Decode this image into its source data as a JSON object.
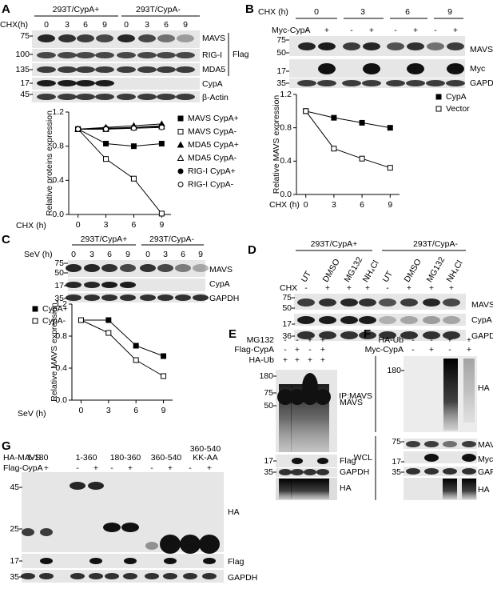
{
  "panels": {
    "A": {
      "letter": "A",
      "groups": [
        "293T/CypA+",
        "293T/CypA-"
      ],
      "row_label": "CHX(h)",
      "times": [
        "0",
        "3",
        "6",
        "9",
        "0",
        "3",
        "6",
        "9"
      ],
      "blots": [
        "MAVS",
        "RIG-I",
        "MDA5",
        "CypA",
        "β-Actin"
      ],
      "bracket": "Flag",
      "markers": [
        "75",
        "100",
        "135",
        "17",
        "45"
      ]
    },
    "B": {
      "letter": "B",
      "row_label": "CHX (h)",
      "times": [
        "0",
        "3",
        "6",
        "9"
      ],
      "treat_label": "Myc-CypA",
      "treat": [
        "-",
        "+",
        "-",
        "+",
        "-",
        "+",
        "-",
        "+"
      ],
      "blots": [
        "MAVS",
        "Myc",
        "GAPDH"
      ],
      "markers": [
        "75",
        "50",
        "17",
        "35"
      ]
    },
    "C": {
      "letter": "C",
      "groups": [
        "293T/CypA+",
        "293T/CypA-"
      ],
      "row_label": "SeV (h)",
      "times": [
        "0",
        "3",
        "6",
        "9",
        "0",
        "3",
        "6",
        "9"
      ],
      "blots": [
        "MAVS",
        "CypA",
        "GAPDH"
      ],
      "markers": [
        "75",
        "50",
        "17",
        "35"
      ]
    },
    "D": {
      "letter": "D",
      "groups": [
        "293T/CypA+",
        "293T/CypA-"
      ],
      "lanes": [
        "UT",
        "DMSO",
        "MG132",
        "NH₄Cl",
        "UT",
        "DMSO",
        "MG132",
        "NH₄Cl"
      ],
      "row_label": "CHX",
      "treat": [
        "-",
        "+",
        "+",
        "+",
        "-",
        "+",
        "+",
        "+"
      ],
      "blots": [
        "MAVS",
        "CypA",
        "GAPDH"
      ],
      "markers": [
        "75",
        "50",
        "17",
        "36"
      ]
    },
    "E": {
      "letter": "E",
      "rows": [
        {
          "label": "MG132",
          "signs": [
            "-",
            "-",
            "+",
            "+"
          ]
        },
        {
          "label": "Flag-CypA",
          "signs": [
            "-",
            "+",
            "-",
            "+"
          ]
        },
        {
          "label": "HA-Ub",
          "signs": [
            "+",
            "+",
            "+",
            "+"
          ]
        }
      ],
      "blots": [
        "MAVS",
        "Flag",
        "GAPDH",
        "HA"
      ],
      "markers": [
        "180",
        "75",
        "50",
        "17",
        "35"
      ]
    },
    "F": {
      "letter": "F",
      "rows": [
        {
          "label": "HA-Ub",
          "signs": [
            "-",
            "-",
            "+",
            "+"
          ]
        },
        {
          "label": "Myc-CypA",
          "signs": [
            "-",
            "+",
            "-",
            "+"
          ]
        }
      ],
      "sections": [
        "IP:MAVS",
        "WCL"
      ],
      "blots": [
        "HA",
        "MAVS",
        "Myc",
        "GAPDH",
        "HA"
      ],
      "markers": [
        "180",
        "75",
        "17",
        "35"
      ]
    },
    "G": {
      "letter": "G",
      "row_labels": [
        "HA-MAVS",
        "Flag-CypA"
      ],
      "constructs": [
        [
          "1-180"
        ],
        [
          "1-360"
        ],
        [
          "180-360"
        ],
        [
          "360-540"
        ],
        [
          "360-540",
          "KK-AA"
        ]
      ],
      "signs": [
        "-",
        "+",
        "-",
        "+",
        "-",
        "+",
        "-",
        "+",
        "-",
        "+"
      ],
      "blots": [
        "HA",
        "Flag",
        "GAPDH"
      ],
      "markers": [
        "45",
        "25",
        "17",
        "35"
      ]
    }
  },
  "chart_data": [
    {
      "type": "line",
      "ylabel": "Relative proteins expression",
      "xlabel": "CHX (h)",
      "x": [
        0,
        3,
        6,
        9
      ],
      "xlim": [
        -1,
        10
      ],
      "xticks": [
        0,
        3,
        6,
        9
      ],
      "ylim": [
        0,
        1.2
      ],
      "yticks": [
        {
          "value": 0,
          "label": "0.0"
        },
        0.4,
        0.8,
        1.2
      ],
      "legend": "right",
      "series": [
        {
          "name": "MAVS CypA+",
          "color": "#000000",
          "marker": "square",
          "filled": true,
          "values": [
            1,
            0.83,
            0.8,
            0.83
          ]
        },
        {
          "name": "MAVS CypA-",
          "color": "#000000",
          "marker": "square",
          "filled": false,
          "values": [
            1,
            0.65,
            0.42,
            0.01
          ]
        },
        {
          "name": "MDA5 CypA+",
          "color": "#000000",
          "marker": "triangle",
          "filled": true,
          "values": [
            1,
            1.02,
            1.04,
            1.06
          ]
        },
        {
          "name": "MDA5 CypA-",
          "color": "#000000",
          "marker": "triangle",
          "filled": false,
          "values": [
            1,
            1.0,
            1.02,
            1.03
          ]
        },
        {
          "name": "RIG-I CypA+",
          "color": "#000000",
          "marker": "circle",
          "filled": true,
          "values": [
            1,
            1.01,
            1.02,
            1.04
          ]
        },
        {
          "name": "RIG-I CypA-",
          "color": "#000000",
          "marker": "circle",
          "filled": false,
          "values": [
            1,
            1.0,
            1.01,
            1.02
          ]
        }
      ]
    },
    {
      "type": "line",
      "ylabel": "Relative MAVS expression",
      "xlabel": "CHX (h)",
      "x": [
        0,
        3,
        6,
        9
      ],
      "xlim": [
        -1,
        10
      ],
      "xticks": [
        0,
        3,
        6,
        9
      ],
      "ylim": [
        0,
        1.2
      ],
      "yticks": [
        {
          "value": 0,
          "label": "0.0"
        },
        0.4,
        0.8,
        1.2
      ],
      "legend": "right",
      "series": [
        {
          "name": "CypA",
          "color": "#000000",
          "marker": "square",
          "filled": true,
          "values": [
            1,
            0.92,
            0.86,
            0.8
          ]
        },
        {
          "name": "Vector",
          "color": "#000000",
          "marker": "square",
          "filled": false,
          "values": [
            1,
            0.55,
            0.43,
            0.32
          ]
        }
      ]
    },
    {
      "type": "line",
      "ylabel": "Relative MAVS expression",
      "xlabel": "SeV (h)",
      "x": [
        0,
        3,
        6,
        9
      ],
      "xlim": [
        -1,
        10
      ],
      "xticks": [
        0,
        3,
        6,
        9
      ],
      "ylim": [
        0,
        1.2
      ],
      "yticks": [
        {
          "value": 0,
          "label": "0.0"
        },
        0.4,
        0.8,
        1.2
      ],
      "legend": "top-left",
      "series": [
        {
          "name": "CypA+",
          "color": "#000000",
          "marker": "square",
          "filled": true,
          "values": [
            1,
            1.0,
            0.68,
            0.55
          ]
        },
        {
          "name": "CypA-",
          "color": "#000000",
          "marker": "square",
          "filled": false,
          "values": [
            1,
            0.84,
            0.5,
            0.3
          ]
        }
      ]
    }
  ]
}
